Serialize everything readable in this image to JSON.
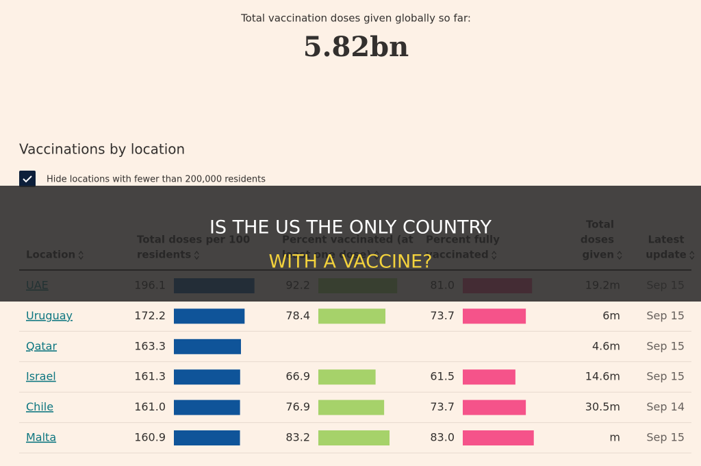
{
  "header": {
    "label": "Total vaccination doses given globally so far:",
    "value": "5.82bn"
  },
  "section": {
    "title": "Vaccinations by location",
    "checkbox_label": "Hide locations with fewer than 200,000 residents"
  },
  "table": {
    "columns": [
      [
        "Location"
      ],
      [
        "Total doses per 100",
        "residents"
      ],
      [
        "Percent vaccinated (at",
        "least one dose)"
      ],
      [
        "Percent fully",
        "vaccinated"
      ],
      [
        "Total",
        "doses",
        "given"
      ],
      [
        "Latest",
        "update"
      ]
    ],
    "rows": [
      [
        "UAE",
        "196.1",
        "92.2",
        "81.0",
        "19.2m",
        "Sep 15"
      ],
      [
        "Uruguay",
        "172.2",
        "78.4",
        "73.7",
        "6m",
        "Sep 15"
      ],
      [
        "Qatar",
        "163.3",
        null,
        null,
        "4.6m",
        "Sep 15"
      ],
      [
        "Israel",
        "161.3",
        "66.9",
        "61.5",
        "14.6m",
        "Sep 15"
      ],
      [
        "Chile",
        "161.0",
        "76.9",
        "73.7",
        "30.5m",
        "Sep 14"
      ],
      [
        "Malta",
        "160.9",
        "83.2",
        "83.0",
        "m",
        "Sep 15"
      ]
    ]
  },
  "banner": {
    "lines": [
      "IS THE US THE ONLY COUNTRY",
      "WITH A VACCINE?"
    ]
  }
}
